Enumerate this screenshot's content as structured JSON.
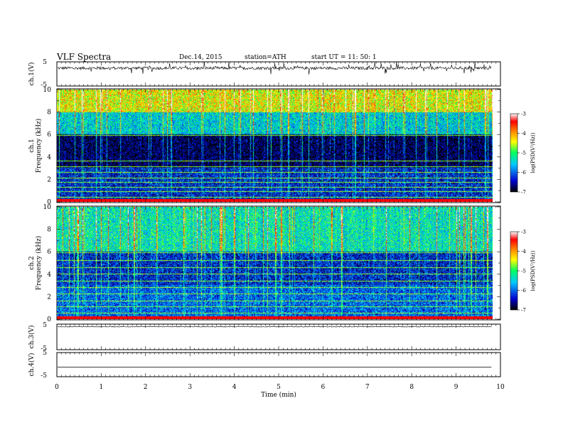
{
  "header": {
    "title": "VLF Spectra",
    "date": "Dec.14, 2015",
    "station": "station=ATH",
    "start": "start  UT  =   11: 50: 1"
  },
  "chart_data": {
    "type": "heatmap",
    "x_axis": {
      "label": "Time (min)",
      "range": [
        0,
        10
      ],
      "ticks": [
        "0",
        "1",
        "2",
        "3",
        "4",
        "5",
        "6",
        "7",
        "8",
        "9",
        "10"
      ],
      "data_end_min": 9.8
    },
    "panels": [
      {
        "id": "ch1_waveform",
        "kind": "waveform",
        "ylabel": "ch.1(V)",
        "ylim": [
          -5,
          5
        ],
        "ytick_labels": [
          "5",
          "-5"
        ],
        "baseline_v": 2.4,
        "noise_amplitude_v": 0.6,
        "spike_amplitude_v": 2.2,
        "color": "#000000"
      },
      {
        "id": "ch1_spectrogram",
        "kind": "spectrogram",
        "ylabel_lines": [
          "ch.1",
          "Frequency (kHz)"
        ],
        "ylim": [
          0,
          10
        ],
        "ytick_labels": [
          "0",
          "2",
          "4",
          "6",
          "8",
          "10"
        ],
        "bands": [
          {
            "from_khz": 8.0,
            "to_khz": 10.0,
            "log_psd": -4.4
          },
          {
            "from_khz": 6.0,
            "to_khz": 8.0,
            "log_psd": -5.5
          },
          {
            "from_khz": 3.0,
            "to_khz": 6.0,
            "log_psd": -6.8
          },
          {
            "from_khz": 0.0,
            "to_khz": 3.0,
            "log_psd": -6.3
          }
        ],
        "tonal_lines_khz": [
          0.4,
          0.9,
          1.3,
          1.7,
          2.1,
          2.6,
          3.1,
          3.6,
          5.9
        ],
        "colorbar": {
          "label": "log(PSD(V²/Hz))",
          "range": [
            -7,
            -3
          ],
          "ticks": [
            "-3",
            "-4",
            "-5",
            "-6",
            "-7"
          ]
        }
      },
      {
        "id": "ch2_spectrogram",
        "kind": "spectrogram",
        "ylabel_lines": [
          "ch.2",
          "Frequency (kHz)"
        ],
        "ylim": [
          0,
          10
        ],
        "ytick_labels": [
          "0",
          "2",
          "4",
          "6",
          "8",
          "10"
        ],
        "bands": [
          {
            "from_khz": 6.0,
            "to_khz": 10.0,
            "log_psd": -5.3
          },
          {
            "from_khz": 3.0,
            "to_khz": 6.0,
            "log_psd": -6.3
          },
          {
            "from_khz": 0.0,
            "to_khz": 3.0,
            "log_psd": -6.0
          }
        ],
        "tonal_lines_khz": [
          0.5,
          1.1,
          1.6,
          2.2,
          2.8,
          3.4,
          4.0,
          4.6,
          5.2,
          5.9
        ],
        "colorbar": {
          "label": "log(PSD(V²/Hz))",
          "range": [
            -7,
            -3
          ],
          "ticks": [
            "-3",
            "-4",
            "-5",
            "-6",
            "-7"
          ]
        }
      },
      {
        "id": "ch3_waveform",
        "kind": "waveform",
        "ylabel": "ch.3(V)",
        "ylim": [
          -5,
          5
        ],
        "ytick_labels": [
          "5",
          "-5"
        ],
        "baseline_v": 4.0,
        "noise_amplitude_v": 0.15,
        "spike_amplitude_v": 0.0,
        "color": "#000000"
      },
      {
        "id": "ch4_waveform",
        "kind": "waveform",
        "ylabel": "ch.4(V)",
        "ylim": [
          -5,
          5
        ],
        "ytick_labels": [
          "5",
          "-5"
        ],
        "baseline_v": -1.0,
        "noise_amplitude_v": 0.0,
        "spike_amplitude_v": 0.0,
        "color": "#000000"
      }
    ],
    "colormap": [
      "#000000",
      "#0000d0",
      "#00c8ff",
      "#00ff60",
      "#ffff00",
      "#ff8000",
      "#ff0000",
      "#ffffff"
    ]
  }
}
